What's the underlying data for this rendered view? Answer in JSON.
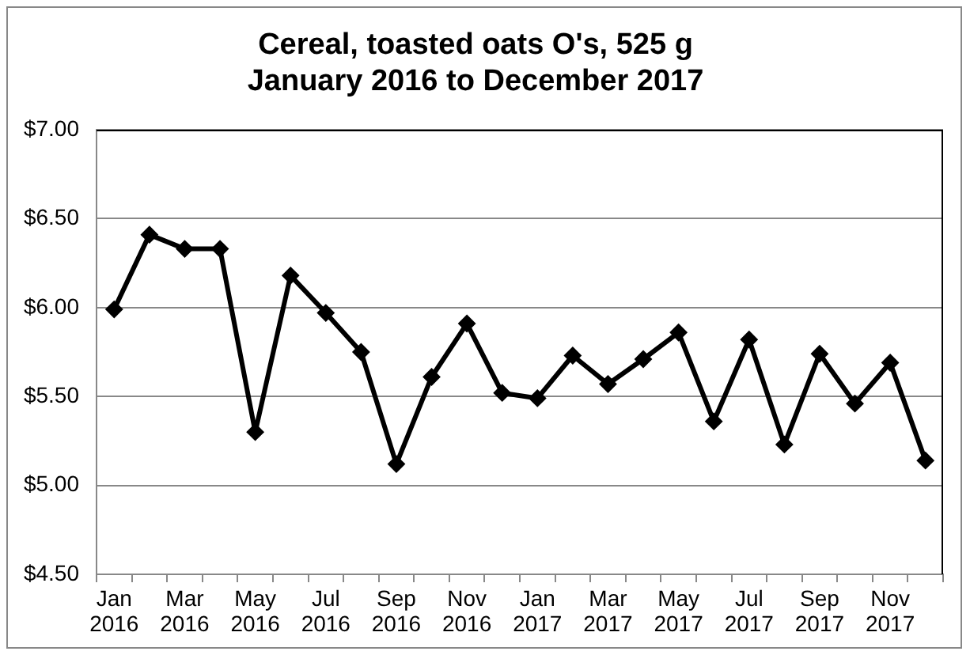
{
  "chart_data": {
    "type": "line",
    "title": "Cereal, toasted oats O's, 525 g",
    "subtitle": "January 2016 to December 2017",
    "categories": [
      "Jan 2016",
      null,
      "Mar 2016",
      null,
      "May 2016",
      null,
      "Jul 2016",
      null,
      "Sep 2016",
      null,
      "Nov 2016",
      null,
      "Jan 2017",
      null,
      "Mar 2017",
      null,
      "May 2017",
      null,
      "Jul 2017",
      null,
      "Sep 2017",
      null,
      "Nov 2017",
      null
    ],
    "series": [
      {
        "color": "#000000",
        "values": [
          5.99,
          6.41,
          6.33,
          6.33,
          5.3,
          6.18,
          5.97,
          5.75,
          5.12,
          5.61,
          5.91,
          5.52,
          5.49,
          5.73,
          5.57,
          5.71,
          5.86,
          5.36,
          5.82,
          5.23,
          5.74,
          5.46,
          5.69,
          5.14
        ]
      }
    ],
    "ylim": [
      4.5,
      7
    ],
    "yticks": [
      {
        "value": 4.5,
        "label": "$4.50"
      },
      {
        "value": 5,
        "label": "$5.00"
      },
      {
        "value": 5.5,
        "label": "$5.50"
      },
      {
        "value": 6,
        "label": "$6.00"
      },
      {
        "value": 6.5,
        "label": "$6.50"
      },
      {
        "value": 7,
        "label": "$7.00"
      }
    ],
    "grid": "y",
    "marker": "diamond",
    "line_style": "solid"
  }
}
